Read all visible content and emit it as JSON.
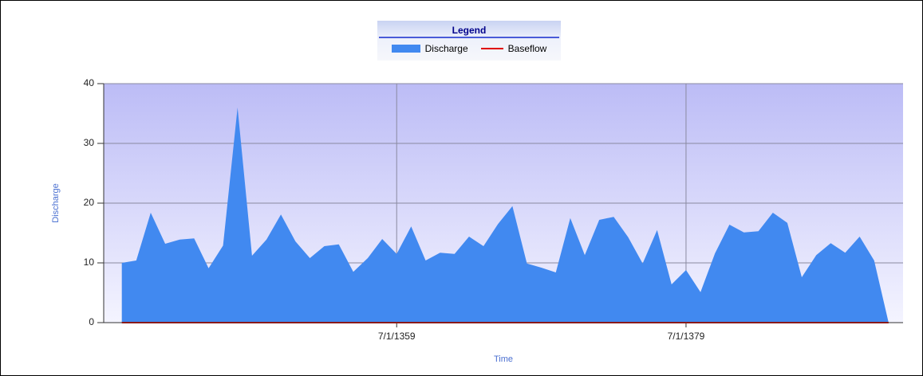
{
  "chart_data": {
    "type": "area",
    "legend_title": "Legend",
    "y_label": "Discharge",
    "x_label": "Time",
    "x": [
      "7/1/1340",
      "7/1/1341",
      "7/1/1342",
      "7/1/1343",
      "7/1/1344",
      "7/1/1345",
      "7/1/1346",
      "7/1/1347",
      "7/1/1348",
      "7/1/1349",
      "7/1/1350",
      "7/1/1351",
      "7/1/1352",
      "7/1/1353",
      "7/1/1354",
      "7/1/1355",
      "7/1/1356",
      "7/1/1357",
      "7/1/1358",
      "7/1/1359",
      "7/1/1360",
      "7/1/1361",
      "7/1/1362",
      "7/1/1363",
      "7/1/1364",
      "7/1/1365",
      "7/1/1366",
      "7/1/1367",
      "7/1/1368",
      "7/1/1369",
      "7/1/1370",
      "7/1/1371",
      "7/1/1372",
      "7/1/1373",
      "7/1/1374",
      "7/1/1375",
      "7/1/1376",
      "7/1/1377",
      "7/1/1378",
      "7/1/1379",
      "7/1/1380",
      "7/1/1381",
      "7/1/1382",
      "7/1/1383",
      "7/1/1384",
      "7/1/1385",
      "7/1/1386",
      "7/1/1387",
      "7/1/1388",
      "7/1/1389",
      "7/1/1390",
      "7/1/1391",
      "7/1/1392",
      "7/1/1393"
    ],
    "series": [
      {
        "name": "Discharge",
        "color": "#4189f0",
        "kind": "area",
        "values": [
          10,
          10.4,
          18.4,
          13.2,
          13.9,
          14.1,
          9.1,
          12.9,
          36,
          11.2,
          13.9,
          18.1,
          13.6,
          10.8,
          12.8,
          13.1,
          8.5,
          10.8,
          14,
          11.5,
          16.1,
          10.4,
          11.7,
          11.5,
          14.4,
          12.8,
          16.5,
          19.5,
          9.9,
          9.2,
          8.4,
          17.5,
          11.3,
          17.2,
          17.7,
          14.3,
          9.9,
          15.5,
          6.4,
          8.8,
          5.1,
          11.6,
          16.4,
          15.1,
          15.3,
          18.4,
          16.7,
          7.6,
          11.3,
          13.3,
          11.7,
          14.4,
          10.4,
          0
        ]
      },
      {
        "name": "Baseflow",
        "color": "#e00000",
        "kind": "line",
        "values": [
          0,
          0,
          0,
          0,
          0,
          0,
          0,
          0,
          0,
          0,
          0,
          0,
          0,
          0,
          0,
          0,
          0,
          0,
          0,
          0,
          0,
          0,
          0,
          0,
          0,
          0,
          0,
          0,
          0,
          0,
          0,
          0,
          0,
          0,
          0,
          0,
          0,
          0,
          0,
          0,
          0,
          0,
          0,
          0,
          0,
          0,
          0,
          0,
          0,
          0,
          0,
          0,
          0,
          0
        ]
      }
    ],
    "xlim": [
      "4/1/1339",
      "7/1/1394"
    ],
    "xticks": [
      "7/1/1359",
      "7/1/1379"
    ],
    "ylim": [
      0,
      40
    ],
    "yticks": [
      0,
      10,
      20,
      30,
      40
    ],
    "grid": true
  }
}
